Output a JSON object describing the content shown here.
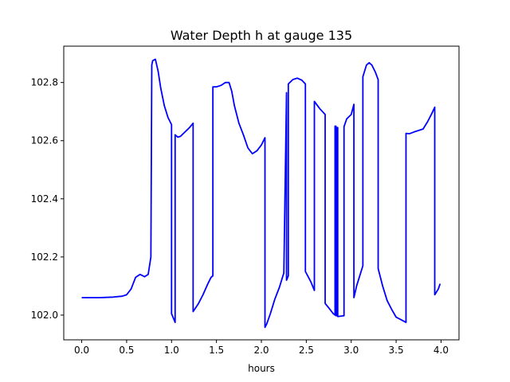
{
  "chart_data": {
    "type": "line",
    "title": "Water Depth h at gauge 135",
    "xlabel": "hours",
    "ylabel": "",
    "xlim": [
      -0.2,
      4.2
    ],
    "ylim": [
      101.915,
      102.925
    ],
    "xticks": [
      0.0,
      0.5,
      1.0,
      1.5,
      2.0,
      2.5,
      3.0,
      3.5,
      4.0
    ],
    "xtick_labels": [
      "0.0",
      "0.5",
      "1.0",
      "1.5",
      "2.0",
      "2.5",
      "3.0",
      "3.5",
      "4.0"
    ],
    "yticks": [
      102.0,
      102.2,
      102.4,
      102.6,
      102.8
    ],
    "ytick_labels": [
      "102.0",
      "102.2",
      "102.4",
      "102.6",
      "102.8"
    ],
    "grid": false,
    "series": [
      {
        "color": "#0000ff",
        "x": [
          0.0,
          0.2,
          0.35,
          0.45,
          0.5,
          0.55,
          0.6,
          0.65,
          0.7,
          0.74,
          0.77,
          0.78,
          0.79,
          0.82,
          0.85,
          0.88,
          0.92,
          0.96,
          1.0,
          1.0,
          1.04,
          1.04,
          1.07,
          1.1,
          1.15,
          1.2,
          1.24,
          1.24,
          1.3,
          1.35,
          1.4,
          1.44,
          1.46,
          1.46,
          1.5,
          1.55,
          1.6,
          1.64,
          1.67,
          1.7,
          1.75,
          1.8,
          1.85,
          1.9,
          1.95,
          2.0,
          2.04,
          2.04,
          2.06,
          2.1,
          2.15,
          2.2,
          2.25,
          2.28,
          2.28,
          2.3,
          2.3,
          2.35,
          2.4,
          2.45,
          2.49,
          2.49,
          2.55,
          2.59,
          2.59,
          2.65,
          2.71,
          2.71,
          2.75,
          2.8,
          2.82,
          2.82,
          2.83,
          2.83,
          2.84,
          2.84,
          2.85,
          2.85,
          2.9,
          2.92,
          2.92,
          2.95,
          3.0,
          3.03,
          3.03,
          3.06,
          3.1,
          3.13,
          3.13,
          3.17,
          3.2,
          3.23,
          3.27,
          3.3,
          3.3,
          3.35,
          3.4,
          3.45,
          3.5,
          3.55,
          3.61,
          3.61,
          3.65,
          3.7,
          3.8,
          3.85,
          3.9,
          3.93,
          3.93,
          3.97,
          3.99
        ],
        "y": [
          102.06,
          102.06,
          102.062,
          102.065,
          102.07,
          102.09,
          102.13,
          102.14,
          102.132,
          102.14,
          102.2,
          102.86,
          102.875,
          102.88,
          102.84,
          102.78,
          102.72,
          102.68,
          102.655,
          102.005,
          101.975,
          102.62,
          102.612,
          102.615,
          102.63,
          102.645,
          102.66,
          102.012,
          102.04,
          102.07,
          102.105,
          102.13,
          102.135,
          102.785,
          102.785,
          102.79,
          102.8,
          102.8,
          102.77,
          102.72,
          102.66,
          102.62,
          102.575,
          102.555,
          102.565,
          102.585,
          102.61,
          101.958,
          101.97,
          102.005,
          102.055,
          102.095,
          102.145,
          102.765,
          102.12,
          102.135,
          102.795,
          102.81,
          102.815,
          102.808,
          102.795,
          102.15,
          102.115,
          102.085,
          102.735,
          102.71,
          102.69,
          102.04,
          102.025,
          102.005,
          102.0,
          102.65,
          102.65,
          101.998,
          101.998,
          102.645,
          102.645,
          101.995,
          101.997,
          101.998,
          102.648,
          102.675,
          102.69,
          102.725,
          102.06,
          102.1,
          102.14,
          102.17,
          102.82,
          102.86,
          102.868,
          102.86,
          102.835,
          102.81,
          102.16,
          102.1,
          102.05,
          102.02,
          101.993,
          101.985,
          101.975,
          102.625,
          102.624,
          102.63,
          102.64,
          102.665,
          102.695,
          102.715,
          102.07,
          102.09,
          102.108
        ]
      }
    ]
  }
}
